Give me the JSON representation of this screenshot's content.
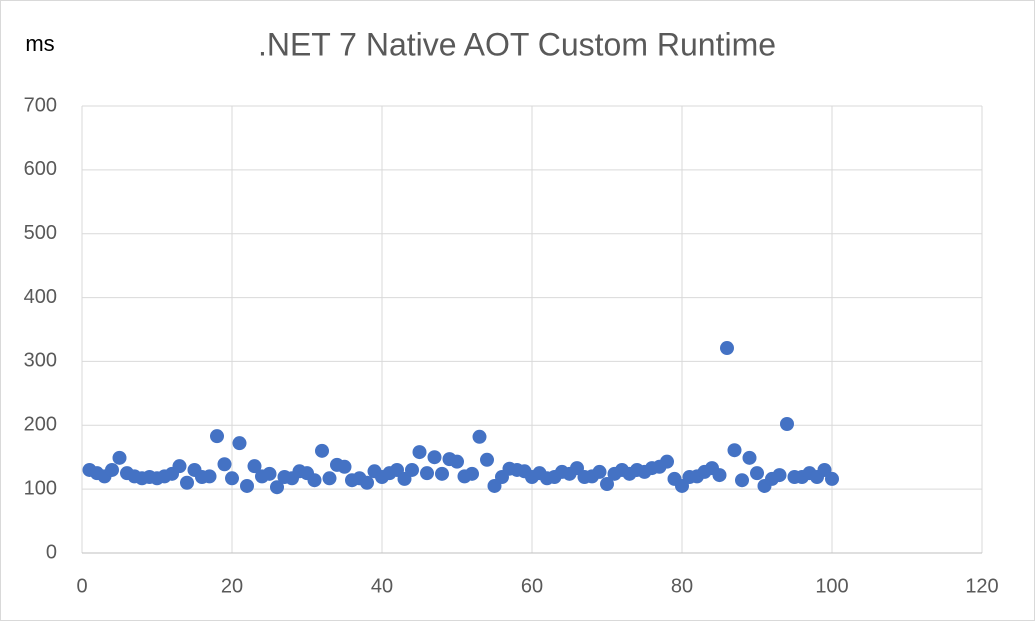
{
  "chart_data": {
    "type": "scatter",
    "title": ".NET 7 Native AOT Custom Runtime",
    "y_label": "ms",
    "color": "#4472c4",
    "x": [
      1,
      2,
      3,
      4,
      5,
      6,
      7,
      8,
      9,
      10,
      11,
      12,
      13,
      14,
      15,
      16,
      17,
      18,
      19,
      20,
      21,
      22,
      23,
      24,
      25,
      26,
      27,
      28,
      29,
      30,
      31,
      32,
      33,
      34,
      35,
      36,
      37,
      38,
      39,
      40,
      41,
      42,
      43,
      44,
      45,
      46,
      47,
      48,
      49,
      50,
      51,
      52,
      53,
      54,
      55,
      56,
      57,
      58,
      59,
      60,
      61,
      62,
      63,
      64,
      65,
      66,
      67,
      68,
      69,
      70,
      71,
      72,
      73,
      74,
      75,
      76,
      77,
      78,
      79,
      80,
      81,
      82,
      83,
      84,
      85,
      86,
      87,
      88,
      89,
      90,
      91,
      92,
      93,
      94,
      95,
      96,
      97,
      98,
      99,
      100
    ],
    "values": [
      130,
      125,
      120,
      130,
      149,
      125,
      120,
      117,
      119,
      117,
      120,
      124,
      136,
      110,
      130,
      119,
      120,
      183,
      139,
      117,
      172,
      105,
      136,
      120,
      124,
      103,
      119,
      117,
      128,
      125,
      114,
      160,
      117,
      138,
      135,
      114,
      117,
      110,
      128,
      119,
      125,
      130,
      116,
      130,
      158,
      125,
      150,
      124,
      147,
      143,
      120,
      124,
      182,
      146,
      105,
      119,
      132,
      130,
      128,
      119,
      125,
      117,
      119,
      127,
      124,
      133,
      119,
      120,
      127,
      108,
      124,
      130,
      124,
      130,
      127,
      133,
      135,
      143,
      116,
      105,
      119,
      120,
      127,
      133,
      122,
      321,
      161,
      114,
      149,
      125,
      105,
      116,
      122,
      202,
      119,
      119,
      125,
      119,
      130,
      116
    ],
    "xlim": [
      0,
      120
    ],
    "xticks": [
      0,
      20,
      40,
      60,
      80,
      100,
      120
    ],
    "ylim": [
      0,
      700
    ],
    "yticks": [
      0,
      100,
      200,
      300,
      400,
      500,
      600,
      700
    ],
    "grid": true
  }
}
